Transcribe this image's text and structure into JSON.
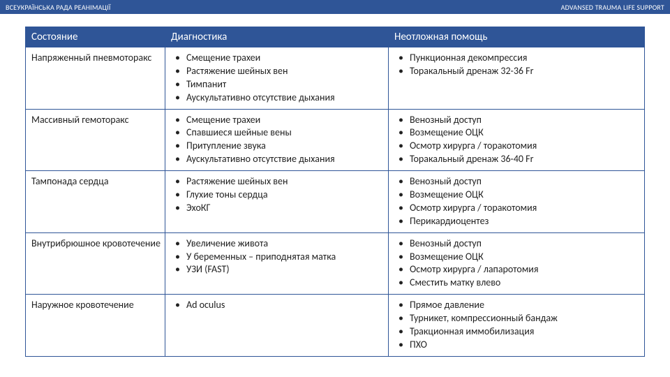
{
  "topbar": {
    "left": "ВСЕУКРАЇНСЬКА РАДА РЕАНІМАЦІЇ",
    "right": "ADVANSED TRAUMA LIFE SUPPORT"
  },
  "table": {
    "columns": [
      "Состояние",
      "Диагностика",
      "Неотложная помощь"
    ],
    "rows": [
      {
        "condition": "Напряженный пневмоторакс",
        "diagnosis": [
          "Смещение трахеи",
          "Растяжение шейных вен",
          "Тимпанит",
          "Аускультативно отсутствие дыхания"
        ],
        "treatment": [
          "Пункционная декомпрессия",
          "Торакальный дренаж 32-36 Fr"
        ]
      },
      {
        "condition": "Массивный гемоторакс",
        "diagnosis": [
          "Смещение трахеи",
          "Спавшиеся шейные вены",
          "Притупление звука",
          "Аускультативно отсутствие дыхания"
        ],
        "treatment": [
          "Венозный доступ",
          "Возмещение ОЦК",
          "Осмотр хирурга / торакотомия",
          "Торакальный дренаж 36-40 Fr"
        ]
      },
      {
        "condition": "Тампонада сердца",
        "diagnosis": [
          "Растяжение шейных вен",
          "Глухие тоны сердца",
          "ЭхоКГ"
        ],
        "treatment": [
          "Венозный доступ",
          "Возмещение ОЦК",
          "Осмотр хирурга / торакотомия",
          "Перикардиоцентез"
        ]
      },
      {
        "condition": "Внутрибрюшное кровотечение",
        "diagnosis": [
          "Увеличение живота",
          "У беременных – приподнятая матка",
          "УЗИ (FAST)"
        ],
        "treatment": [
          "Венозный доступ",
          "Возмещение ОЦК",
          "Осмотр хирурга / лапаротомия",
          "Сместить матку влево"
        ]
      },
      {
        "condition": "Наружное кровотечение",
        "diagnosis": [
          "Ad oculus"
        ],
        "treatment": [
          "Прямое давление",
          "Турникет, компрессионный бандаж",
          "Тракционная иммобилизация",
          "ПХО"
        ]
      }
    ]
  }
}
